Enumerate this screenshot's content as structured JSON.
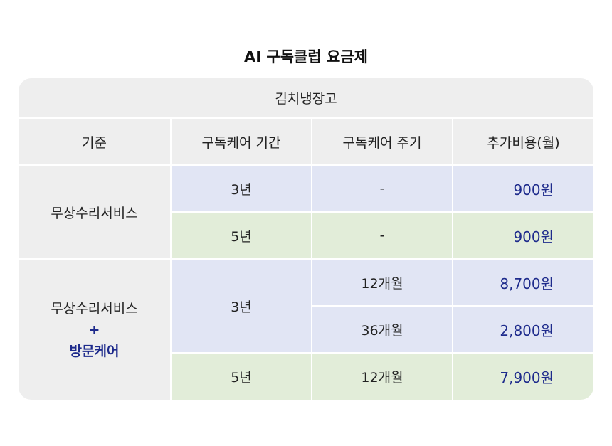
{
  "title": "AI 구독클럽 요금제",
  "table": {
    "product": "김치냉장고",
    "headers": [
      "기준",
      "구독케어 기간",
      "구독케어 주기",
      "추가비용(월)"
    ],
    "groups": [
      {
        "category": [
          "무상수리서비스"
        ],
        "rows": [
          {
            "period": "3년",
            "cycle": "-",
            "price": "900원"
          },
          {
            "period": "5년",
            "cycle": "-",
            "price": "900원"
          }
        ]
      },
      {
        "category": [
          "무상수리서비스",
          "+",
          "방문케어"
        ],
        "rows": [
          {
            "period": "3년",
            "cycle": "12개월",
            "price": "8,700원"
          },
          {
            "period": "3년",
            "cycle": "36개월",
            "price": "2,800원"
          },
          {
            "period": "5년",
            "cycle": "12개월",
            "price": "7,900원"
          }
        ]
      }
    ]
  },
  "colors": {
    "header_bg": "#eeeeee",
    "blue_row_bg": "#e1e5f4",
    "green_row_bg": "#e2edd9",
    "accent_text": "#1e2b8c"
  }
}
